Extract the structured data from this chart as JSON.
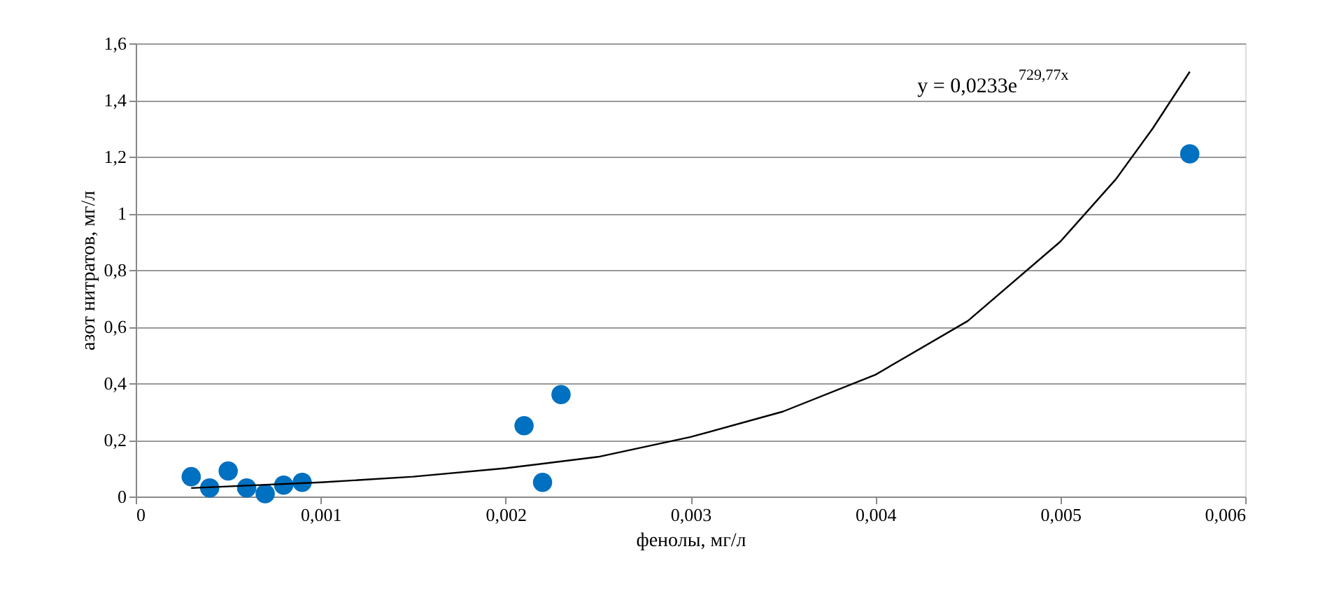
{
  "chart_data": {
    "type": "scatter",
    "xlabel": "фенолы, мг/л",
    "ylabel": "азот нитратов, мг/л",
    "series": [
      {
        "color": "#0070c0",
        "marker": "circle",
        "x": [
          0.0003,
          0.0004,
          0.0005,
          0.0006,
          0.0007,
          0.0008,
          0.0009,
          0.0021,
          0.0022,
          0.0023,
          0.0057
        ],
        "values": [
          0.07,
          0.03,
          0.09,
          0.03,
          0.01,
          0.04,
          0.05,
          0.25,
          0.05,
          0.36,
          1.21
        ]
      },
      {
        "type": "line",
        "color": "#000000",
        "marker": "none",
        "line_style": "solid",
        "x": [
          0.0003,
          0.001,
          0.0015,
          0.002,
          0.0025,
          0.003,
          0.0035,
          0.004,
          0.0045,
          0.005,
          0.0053,
          0.0055,
          0.0057
        ],
        "values": [
          0.03,
          0.05,
          0.07,
          0.1,
          0.14,
          0.21,
          0.3,
          0.43,
          0.62,
          0.9,
          1.12,
          1.3,
          1.5
        ]
      }
    ],
    "xlim": [
      0,
      0.006
    ],
    "xticks": [
      0,
      {
        "value": 0.001,
        "label": "0,001"
      },
      {
        "value": 0.002,
        "label": "0,002"
      },
      {
        "value": 0.003,
        "label": "0,003"
      },
      {
        "value": 0.004,
        "label": "0,004"
      },
      {
        "value": 0.005,
        "label": "0,005"
      },
      {
        "value": 0.006,
        "label": "0,006"
      }
    ],
    "ylim": [
      0,
      1.6
    ],
    "yticks": [
      0,
      {
        "value": 0.2,
        "label": "0,2"
      },
      {
        "value": 0.4,
        "label": "0,4"
      },
      {
        "value": 0.6,
        "label": "0,6"
      },
      {
        "value": 0.8,
        "label": "0,8"
      },
      1,
      {
        "value": 1.2,
        "label": "1,2"
      },
      {
        "value": 1.4,
        "label": "1,4"
      },
      {
        "value": 1.6,
        "label": "1,6"
      }
    ],
    "grid": "y",
    "annotations": [
      "y = 0,0233e$^{729,77x}$"
    ]
  }
}
